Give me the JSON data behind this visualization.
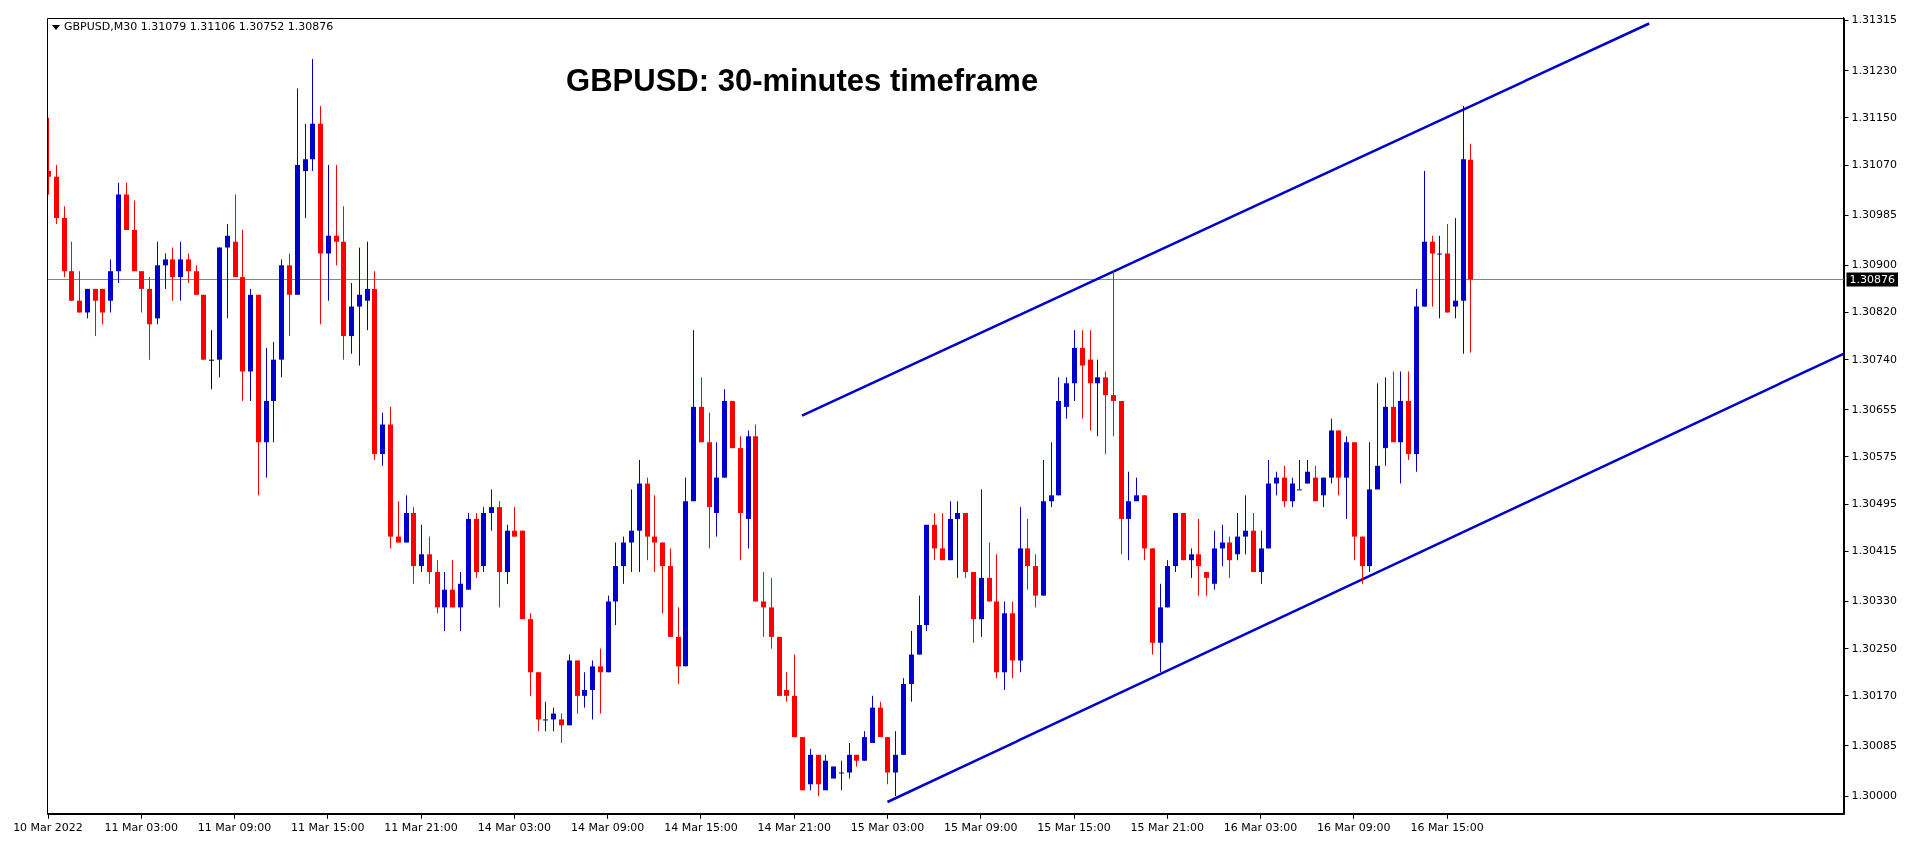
{
  "chart_data": {
    "type": "candlestick",
    "title": "GBPUSD: 30-minutes timeframe",
    "subtitle": "GBPUSD,M30 1.31079 1.31106 1.30752 1.30876",
    "categories": [
      "10 Mar 2022",
      null,
      null,
      null,
      null,
      null,
      null,
      null,
      null,
      null,
      null,
      null,
      "11 Mar 03:00",
      null,
      null,
      null,
      null,
      null,
      null,
      null,
      null,
      null,
      null,
      null,
      "11 Mar 09:00",
      null,
      null,
      null,
      null,
      null,
      null,
      null,
      null,
      null,
      null,
      null,
      "11 Mar 15:00",
      null,
      null,
      null,
      null,
      null,
      null,
      null,
      null,
      null,
      null,
      null,
      "11 Mar 21:00",
      null,
      null,
      null,
      null,
      null,
      null,
      null,
      null,
      null,
      null,
      null,
      "14 Mar 03:00",
      null,
      null,
      null,
      null,
      null,
      null,
      null,
      null,
      null,
      null,
      null,
      "14 Mar 09:00",
      null,
      null,
      null,
      null,
      null,
      null,
      null,
      null,
      null,
      null,
      null,
      "14 Mar 15:00",
      null,
      null,
      null,
      null,
      null,
      null,
      null,
      null,
      null,
      null,
      null,
      "14 Mar 21:00",
      null,
      null,
      null,
      null,
      null,
      null,
      null,
      null,
      null,
      null,
      null,
      "15 Mar 03:00",
      null,
      null,
      null,
      null,
      null,
      null,
      null,
      null,
      null,
      null,
      null,
      "15 Mar 09:00",
      null,
      null,
      null,
      null,
      null,
      null,
      null,
      null,
      null,
      null,
      null,
      "15 Mar 15:00",
      null,
      null,
      null,
      null,
      null,
      null,
      null,
      null,
      null,
      null,
      null,
      "15 Mar 21:00",
      null,
      null,
      null,
      null,
      null,
      null,
      null,
      null,
      null,
      null,
      null,
      "16 Mar 03:00",
      null,
      null,
      null,
      null,
      null,
      null,
      null,
      null,
      null,
      null,
      null,
      "16 Mar 09:00",
      null,
      null,
      null,
      null,
      null,
      null,
      null,
      null,
      null,
      null,
      null,
      "16 Mar 15:00",
      null,
      null,
      null,
      null,
      null,
      null,
      null,
      null,
      null,
      null,
      null,
      null,
      null,
      null,
      null,
      null,
      null,
      null,
      null,
      null,
      null,
      null,
      null,
      null,
      null,
      null,
      null,
      null,
      null,
      null,
      null,
      null,
      null,
      null,
      null,
      null,
      null,
      null,
      null,
      null,
      null,
      null,
      null,
      null,
      null,
      null,
      null,
      null,
      null,
      null,
      null
    ],
    "ohlc": [
      [
        1.3106,
        1.3115,
        1.3102,
        1.3105
      ],
      [
        1.3105,
        1.3107,
        1.3097,
        1.3098
      ],
      [
        1.3098,
        1.31,
        1.3088,
        1.3089
      ],
      [
        1.3089,
        1.3094,
        1.3084,
        1.3084
      ],
      [
        1.3084,
        1.3089,
        1.3082,
        1.3082
      ],
      [
        1.3082,
        1.3086,
        1.3081,
        1.3086
      ],
      [
        1.3086,
        1.3086,
        1.3078,
        1.3084
      ],
      [
        1.3086,
        1.3086,
        1.308,
        1.3082
      ],
      [
        1.3084,
        1.3091,
        1.3082,
        1.3089
      ],
      [
        1.3089,
        1.3104,
        1.3087,
        1.3102
      ],
      [
        1.3102,
        1.3104,
        1.3096,
        1.3096
      ],
      [
        1.3096,
        1.3101,
        1.3089,
        1.3089
      ],
      [
        1.3089,
        1.3089,
        1.3082,
        1.3086
      ],
      [
        1.3086,
        1.3088,
        1.3074,
        1.308
      ],
      [
        1.3081,
        1.3094,
        1.308,
        1.309
      ],
      [
        1.309,
        1.3092,
        1.3086,
        1.3091
      ],
      [
        1.3091,
        1.3093,
        1.3084,
        1.3088
      ],
      [
        1.3088,
        1.3094,
        1.3084,
        1.3091
      ],
      [
        1.3091,
        1.3092,
        1.3087,
        1.3089
      ],
      [
        1.3089,
        1.309,
        1.3085,
        1.3085
      ],
      [
        1.3085,
        1.3085,
        1.3074,
        1.3074
      ],
      [
        1.3074,
        1.3079,
        1.3069,
        1.3074
      ],
      [
        1.3074,
        1.3093,
        1.3071,
        1.3093
      ],
      [
        1.3093,
        1.3097,
        1.3081,
        1.3095
      ],
      [
        1.3094,
        1.3102,
        1.3088,
        1.3088
      ],
      [
        1.3088,
        1.3096,
        1.3067,
        1.3072
      ],
      [
        1.3072,
        1.3086,
        1.3067,
        1.3085
      ],
      [
        1.3085,
        1.3085,
        1.3051,
        1.306
      ],
      [
        1.306,
        1.3076,
        1.3054,
        1.3067
      ],
      [
        1.3067,
        1.3077,
        1.306,
        1.3074
      ],
      [
        1.3074,
        1.3091,
        1.3071,
        1.309
      ],
      [
        1.309,
        1.3092,
        1.3078,
        1.3085
      ],
      [
        1.3085,
        1.312,
        1.3085,
        1.3107
      ],
      [
        1.3106,
        1.3114,
        1.3098,
        1.3108
      ],
      [
        1.3108,
        1.3125,
        1.3106,
        1.3114
      ],
      [
        1.3114,
        1.3117,
        1.308,
        1.3092
      ],
      [
        1.3092,
        1.3107,
        1.3084,
        1.3095
      ],
      [
        1.3095,
        1.3107,
        1.309,
        1.3094
      ],
      [
        1.3094,
        1.31,
        1.3074,
        1.3078
      ],
      [
        1.3078,
        1.3087,
        1.3075,
        1.3083
      ],
      [
        1.3083,
        1.3093,
        1.3073,
        1.3085
      ],
      [
        1.3084,
        1.3094,
        1.3079,
        1.3086
      ],
      [
        1.3086,
        1.3089,
        1.3057,
        1.3058
      ],
      [
        1.3058,
        1.3065,
        1.3056,
        1.3063
      ],
      [
        1.3063,
        1.3066,
        1.3042,
        1.3044
      ],
      [
        1.3044,
        1.305,
        1.3043,
        1.3043
      ],
      [
        1.3043,
        1.3051,
        1.3043,
        1.3048
      ],
      [
        1.3048,
        1.3049,
        1.3036,
        1.3039
      ],
      [
        1.3039,
        1.3046,
        1.3038,
        1.3041
      ],
      [
        1.3041,
        1.3044,
        1.3036,
        1.3038
      ],
      [
        1.3038,
        1.304,
        1.3031,
        1.3032
      ],
      [
        1.3032,
        1.3038,
        1.3028,
        1.3035
      ],
      [
        1.3035,
        1.304,
        1.3032,
        1.3032
      ],
      [
        1.3032,
        1.3038,
        1.3028,
        1.3036
      ],
      [
        1.3035,
        1.3048,
        1.3035,
        1.3047
      ],
      [
        1.3047,
        1.3048,
        1.3037,
        1.3038
      ],
      [
        1.3039,
        1.3049,
        1.3038,
        1.3048
      ],
      [
        1.3048,
        1.3052,
        1.3045,
        1.3049
      ],
      [
        1.3049,
        1.305,
        1.3032,
        1.3038
      ],
      [
        1.3038,
        1.3046,
        1.3036,
        1.3045
      ],
      [
        1.3045,
        1.3049,
        1.3044,
        1.3044
      ],
      [
        1.3045,
        1.3045,
        1.303,
        1.303
      ],
      [
        1.303,
        1.3031,
        1.3017,
        1.3021
      ],
      [
        1.3021,
        1.3021,
        1.3011,
        1.3013
      ],
      [
        1.3013,
        1.3016,
        1.3011,
        1.3013
      ],
      [
        1.3013,
        1.3015,
        1.3011,
        1.3014
      ],
      [
        1.3013,
        1.3014,
        1.3009,
        1.3012
      ],
      [
        1.3012,
        1.3024,
        1.3012,
        1.3023
      ],
      [
        1.3023,
        1.3023,
        1.3014,
        1.3017
      ],
      [
        1.3017,
        1.3021,
        1.3015,
        1.3018
      ],
      [
        1.3018,
        1.3023,
        1.3013,
        1.3022
      ],
      [
        1.3022,
        1.3025,
        1.3014,
        1.3021
      ],
      [
        1.3021,
        1.3034,
        1.3021,
        1.3033
      ],
      [
        1.3033,
        1.3043,
        1.3029,
        1.3039
      ],
      [
        1.3039,
        1.3044,
        1.3036,
        1.3043
      ],
      [
        1.3043,
        1.3052,
        1.3038,
        1.3045
      ],
      [
        1.3045,
        1.3057,
        1.3038,
        1.3053
      ],
      [
        1.3053,
        1.3054,
        1.304,
        1.3044
      ],
      [
        1.3044,
        1.3051,
        1.3038,
        1.3043
      ],
      [
        1.3043,
        1.3043,
        1.3031,
        1.3039
      ],
      [
        1.3039,
        1.3042,
        1.3027,
        1.3027
      ],
      [
        1.3027,
        1.3032,
        1.3019,
        1.3022
      ],
      [
        1.3022,
        1.3054,
        1.3022,
        1.305
      ],
      [
        1.305,
        1.3079,
        1.305,
        1.3066
      ],
      [
        1.3066,
        1.3071,
        1.306,
        1.306
      ],
      [
        1.306,
        1.3065,
        1.3042,
        1.3049
      ],
      [
        1.3048,
        1.306,
        1.3044,
        1.3054
      ],
      [
        1.3054,
        1.3069,
        1.3054,
        1.3067
      ],
      [
        1.3067,
        1.3067,
        1.3059,
        1.3059
      ],
      [
        1.3059,
        1.3061,
        1.304,
        1.3048
      ],
      [
        1.3047,
        1.3062,
        1.3042,
        1.3061
      ],
      [
        1.3061,
        1.3063,
        1.3033,
        1.3033
      ],
      [
        1.3033,
        1.3038,
        1.3027,
        1.3032
      ],
      [
        1.3032,
        1.3037,
        1.3025,
        1.3027
      ],
      [
        1.3027,
        1.3027,
        1.3017,
        1.3017
      ],
      [
        1.3018,
        1.3021,
        1.3016,
        1.3017
      ],
      [
        1.3017,
        1.3024,
        1.301,
        1.301
      ],
      [
        1.301,
        1.301,
        1.3001,
        1.3001
      ],
      [
        1.3002,
        1.3008,
        1.3001,
        1.3007
      ],
      [
        1.3007,
        1.3007,
        1.3,
        1.3002
      ],
      [
        1.3001,
        1.3007,
        1.3001,
        1.3006
      ],
      [
        1.3003,
        1.3005,
        1.3003,
        1.3005
      ],
      [
        1.3004,
        1.3006,
        1.3001,
        1.3004
      ],
      [
        1.3004,
        1.3009,
        1.3003,
        1.3007
      ],
      [
        1.3007,
        1.3007,
        1.3005,
        1.3006
      ],
      [
        1.3006,
        1.3011,
        1.3006,
        1.301
      ],
      [
        1.3009,
        1.3017,
        1.3009,
        1.3015
      ],
      [
        1.3015,
        1.3016,
        1.301,
        1.301
      ],
      [
        1.301,
        1.301,
        1.3002,
        1.3004
      ],
      [
        1.3004,
        1.3011,
        1.3,
        1.3007
      ],
      [
        1.3007,
        1.302,
        1.3007,
        1.3019
      ],
      [
        1.3019,
        1.3028,
        1.3016,
        1.3024
      ],
      [
        1.3024,
        1.3034,
        1.3024,
        1.3029
      ],
      [
        1.3029,
        1.3046,
        1.3028,
        1.3046
      ],
      [
        1.3046,
        1.3048,
        1.304,
        1.3042
      ],
      [
        1.3042,
        1.3048,
        1.304,
        1.304
      ],
      [
        1.304,
        1.305,
        1.304,
        1.3047
      ],
      [
        1.3047,
        1.305,
        1.3037,
        1.3048
      ],
      [
        1.3048,
        1.3048,
        1.3037,
        1.3038
      ],
      [
        1.3038,
        1.3038,
        1.3026,
        1.303
      ],
      [
        1.303,
        1.3052,
        1.3027,
        1.3037
      ],
      [
        1.3037,
        1.3043,
        1.3033,
        1.3033
      ],
      [
        1.3033,
        1.3041,
        1.302,
        1.3021
      ],
      [
        1.3021,
        1.3033,
        1.3018,
        1.3031
      ],
      [
        1.3031,
        1.3033,
        1.302,
        1.3023
      ],
      [
        1.3023,
        1.3049,
        1.3021,
        1.3042
      ],
      [
        1.3042,
        1.3047,
        1.3035,
        1.3039
      ],
      [
        1.3039,
        1.3041,
        1.3032,
        1.3034
      ],
      [
        1.3034,
        1.3057,
        1.3034,
        1.305
      ],
      [
        1.305,
        1.306,
        1.3049,
        1.3051
      ],
      [
        1.3051,
        1.3071,
        1.3051,
        1.3067
      ],
      [
        1.3066,
        1.3071,
        1.3064,
        1.307
      ],
      [
        1.307,
        1.3079,
        1.3067,
        1.3076
      ],
      [
        1.3076,
        1.3079,
        1.3064,
        1.3073
      ],
      [
        1.3074,
        1.3079,
        1.3062,
        1.307
      ],
      [
        1.307,
        1.3074,
        1.3061,
        1.3071
      ],
      [
        1.3071,
        1.3072,
        1.3058,
        1.3068
      ],
      [
        1.3068,
        1.3089,
        1.3061,
        1.3067
      ],
      [
        1.3067,
        1.3067,
        1.3041,
        1.3047
      ],
      [
        1.3047,
        1.3055,
        1.304,
        1.305
      ],
      [
        1.305,
        1.3054,
        1.305,
        1.3051
      ],
      [
        1.3051,
        1.3051,
        1.304,
        1.3042
      ],
      [
        1.3042,
        1.3042,
        1.3024,
        1.3026
      ],
      [
        1.3026,
        1.3036,
        1.3021,
        1.3032
      ],
      [
        1.3032,
        1.304,
        1.3032,
        1.3039
      ],
      [
        1.3039,
        1.3048,
        1.3038,
        1.3048
      ],
      [
        1.3048,
        1.3048,
        1.304,
        1.304
      ],
      [
        1.304,
        1.3042,
        1.3037,
        1.3041
      ],
      [
        1.3041,
        1.3047,
        1.3034,
        1.3039
      ],
      [
        1.3038,
        1.3038,
        1.3034,
        1.3037
      ],
      [
        1.3036,
        1.3045,
        1.3035,
        1.3042
      ],
      [
        1.3042,
        1.3046,
        1.3039,
        1.3043
      ],
      [
        1.3043,
        1.3044,
        1.3037,
        1.304
      ],
      [
        1.3041,
        1.3048,
        1.304,
        1.3044
      ],
      [
        1.3044,
        1.3051,
        1.3041,
        1.3045
      ],
      [
        1.3045,
        1.3048,
        1.3038,
        1.3038
      ],
      [
        1.3038,
        1.3045,
        1.3036,
        1.3042
      ],
      [
        1.3042,
        1.3057,
        1.3042,
        1.3053
      ],
      [
        1.3053,
        1.3055,
        1.3051,
        1.3054
      ],
      [
        1.3054,
        1.3056,
        1.3049,
        1.305
      ],
      [
        1.305,
        1.3054,
        1.3049,
        1.3053
      ],
      [
        1.3052,
        1.3057,
        1.3052,
        1.3052
      ],
      [
        1.3053,
        1.3057,
        1.3053,
        1.3055
      ],
      [
        1.3054,
        1.3056,
        1.305,
        1.305
      ],
      [
        1.3051,
        1.3054,
        1.3049,
        1.3054
      ],
      [
        1.3054,
        1.3064,
        1.3053,
        1.3062
      ],
      [
        1.3062,
        1.3062,
        1.3051,
        1.3054
      ],
      [
        1.3054,
        1.3061,
        1.3047,
        1.306
      ],
      [
        1.306,
        1.306,
        1.304,
        1.3044
      ],
      [
        1.3044,
        1.3044,
        1.3036,
        1.3039
      ],
      [
        1.3039,
        1.306,
        1.3038,
        1.3052
      ],
      [
        1.3052,
        1.307,
        1.3052,
        1.3056
      ],
      [
        1.3059,
        1.3071,
        1.3056,
        1.3066
      ],
      [
        1.3066,
        1.3072,
        1.306,
        1.306
      ],
      [
        1.306,
        1.3072,
        1.3053,
        1.3067
      ],
      [
        1.3067,
        1.3072,
        1.3057,
        1.3058
      ],
      [
        1.3058,
        1.3086,
        1.3055,
        1.3083
      ],
      [
        1.3083,
        1.3106,
        1.3083,
        1.3094
      ],
      [
        1.3094,
        1.3095,
        1.3083,
        1.3092
      ],
      [
        1.3092,
        1.3095,
        1.3081,
        1.3092
      ],
      [
        1.3092,
        1.3097,
        1.3082,
        1.3082
      ],
      [
        1.3083,
        1.3098,
        1.3081,
        1.3084
      ],
      [
        1.3084,
        1.3117,
        1.3075,
        1.3108
      ],
      [
        1.31079,
        1.31106,
        1.30752,
        1.30876
      ],
      null,
      null,
      null,
      null,
      null,
      null,
      null,
      null,
      null,
      null,
      null,
      null,
      null,
      null,
      null,
      null,
      null,
      null,
      null,
      null,
      null,
      null,
      null,
      null,
      null,
      null,
      null,
      null,
      null,
      null,
      null,
      null,
      null,
      null,
      null,
      null,
      null,
      null,
      null,
      null,
      null,
      null,
      null,
      null,
      null,
      null,
      null,
      null
    ],
    "colors": [
      "#ff0000",
      "#ff0000",
      "#ff0000",
      "#ff0000",
      "#ff0000",
      "#0000cc",
      "#ff0000",
      "#ff0000",
      "#0000cc",
      "#0000cc",
      "#ff0000",
      "#ff0000",
      "#ff0000",
      "#ff0000",
      "#0000cc",
      "#0000cc",
      "#ff0000",
      "#0000cc",
      "#ff0000",
      "#ff0000",
      "#ff0000",
      "#000000",
      "#0000cc",
      "#0000cc",
      "#ff0000",
      "#ff0000",
      "#0000cc",
      "#ff0000",
      "#0000cc",
      "#0000cc",
      "#0000cc",
      "#ff0000",
      "#0000cc",
      "#0000cc",
      "#0000cc",
      "#ff0000",
      "#0000cc",
      "#ff0000",
      "#ff0000",
      "#0000cc",
      "#0000cc",
      "#0000cc",
      "#ff0000",
      "#0000cc",
      "#ff0000",
      "#ff0000",
      "#0000cc",
      "#ff0000",
      "#0000cc",
      "#ff0000",
      "#ff0000",
      "#0000cc",
      "#ff0000",
      "#0000cc",
      "#0000cc",
      "#ff0000",
      "#0000cc",
      "#0000cc",
      "#ff0000",
      "#0000cc",
      "#ff0000",
      "#ff0000",
      "#ff0000",
      "#ff0000",
      "#0000cc",
      "#0000cc",
      "#ff0000",
      "#0000cc",
      "#ff0000",
      "#0000cc",
      "#0000cc",
      "#ff0000",
      "#0000cc",
      "#0000cc",
      "#0000cc",
      "#0000cc",
      "#0000cc",
      "#ff0000",
      "#ff0000",
      "#ff0000",
      "#ff0000",
      "#ff0000",
      "#0000cc",
      "#0000cc",
      "#ff0000",
      "#ff0000",
      "#0000cc",
      "#0000cc",
      "#ff0000",
      "#ff0000",
      "#0000cc",
      "#ff0000",
      "#ff0000",
      "#ff0000",
      "#ff0000",
      "#ff0000",
      "#ff0000",
      "#ff0000",
      "#0000cc",
      "#ff0000",
      "#0000cc",
      "#0000cc",
      "#0000cc",
      "#0000cc",
      "#ff0000",
      "#0000cc",
      "#0000cc",
      "#ff0000",
      "#ff0000",
      "#0000cc",
      "#0000cc",
      "#0000cc",
      "#0000cc",
      "#0000cc",
      "#ff0000",
      "#ff0000",
      "#0000cc",
      "#0000cc",
      "#ff0000",
      "#ff0000",
      "#0000cc",
      "#ff0000",
      "#ff0000",
      "#0000cc",
      "#ff0000",
      "#0000cc",
      "#ff0000",
      "#ff0000",
      "#0000cc",
      "#0000cc",
      "#0000cc",
      "#0000cc",
      "#0000cc",
      "#ff0000",
      "#ff0000",
      "#0000cc",
      "#ff0000",
      "#ff0000",
      "#ff0000",
      "#0000cc",
      "#0000cc",
      "#ff0000",
      "#ff0000",
      "#0000cc",
      "#0000cc",
      "#0000cc",
      "#ff0000",
      "#0000cc",
      "#ff0000",
      "#ff0000",
      "#0000cc",
      "#0000cc",
      "#ff0000",
      "#0000cc",
      "#0000cc",
      "#ff0000",
      "#0000cc",
      "#0000cc",
      "#0000cc",
      "#ff0000",
      "#0000cc",
      "#0000cc",
      "#0000cc",
      "#ff0000",
      "#0000cc",
      "#0000cc",
      "#ff0000",
      "#0000cc",
      "#ff0000",
      "#ff0000",
      "#0000cc",
      "#0000cc",
      "#0000cc",
      "#ff0000",
      "#0000cc",
      "#ff0000",
      "#0000cc",
      "#0000cc",
      "#ff0000",
      "#0000cc",
      "#ff0000",
      "#0000cc",
      "#0000cc",
      "#ff0000",
      null,
      null,
      null,
      null,
      null,
      null,
      null,
      null,
      null,
      null,
      null,
      null,
      null,
      null,
      null,
      null,
      null,
      null,
      null,
      null,
      null,
      null,
      null,
      null,
      null,
      null,
      null,
      null,
      null,
      null,
      null,
      null,
      null,
      null,
      null,
      null,
      null,
      null,
      null,
      null,
      null,
      null,
      null,
      null,
      null,
      null,
      null,
      null
    ],
    "series": [
      {
        "type": "line",
        "color": "#0000cc",
        "values": [
          null,
          null,
          null,
          null,
          null,
          null,
          null,
          null,
          null,
          null,
          null,
          null,
          null,
          null,
          null,
          null,
          null,
          null,
          null,
          null,
          null,
          null,
          null,
          null,
          null,
          null,
          null,
          null,
          null,
          null,
          null,
          null,
          null,
          null,
          null,
          null,
          null,
          null,
          null,
          null,
          null,
          null,
          null,
          null,
          null,
          null,
          null,
          null,
          null,
          null,
          null,
          null,
          null,
          null,
          null,
          null,
          null,
          null,
          null,
          null,
          null,
          null,
          null,
          null,
          null,
          null,
          null,
          null,
          null,
          null,
          null,
          null,
          null,
          null,
          null,
          null,
          null,
          null,
          null,
          null,
          null,
          null,
          null,
          null,
          null,
          null,
          null,
          null,
          null,
          null,
          null,
          null,
          null,
          null,
          null,
          null,
          null,
          1.30645,
          null,
          null,
          null,
          null,
          null,
          null,
          null,
          null,
          null,
          null,
          null,
          null,
          null,
          null,
          null,
          null,
          null,
          null,
          null,
          null,
          null,
          null,
          null,
          null,
          null,
          null,
          null,
          null,
          null,
          null,
          null,
          null,
          null,
          null,
          null,
          null,
          null,
          null,
          null,
          null,
          null,
          null,
          null,
          null,
          null,
          null,
          null,
          null,
          null,
          null,
          null,
          null,
          null,
          null,
          null,
          null,
          null,
          null,
          null,
          null,
          null,
          null,
          null,
          null,
          null,
          null,
          null,
          null,
          null,
          null,
          null,
          null,
          null,
          null,
          null,
          null,
          null,
          null,
          null,
          null,
          null,
          null,
          null,
          null,
          null,
          null,
          null,
          null,
          null,
          null,
          null,
          null,
          null,
          null,
          null,
          null,
          null,
          null,
          null,
          null,
          null,
          null,
          null,
          null,
          null,
          null,
          null,
          null,
          1.3131,
          null,
          null,
          null,
          null,
          null,
          null,
          null,
          null,
          null,
          null,
          null,
          null,
          null,
          null,
          null,
          null,
          null,
          null,
          null,
          null,
          null,
          null,
          null,
          null,
          null
        ]
      },
      {
        "type": "line",
        "color": "#0000cc",
        "values": [
          null,
          null,
          null,
          null,
          null,
          null,
          null,
          null,
          null,
          null,
          null,
          null,
          null,
          null,
          null,
          null,
          null,
          null,
          null,
          null,
          null,
          null,
          null,
          null,
          null,
          null,
          null,
          null,
          null,
          null,
          null,
          null,
          null,
          null,
          null,
          null,
          null,
          null,
          null,
          null,
          null,
          null,
          null,
          null,
          null,
          null,
          null,
          null,
          null,
          null,
          null,
          null,
          null,
          null,
          null,
          null,
          null,
          null,
          null,
          null,
          null,
          null,
          null,
          null,
          null,
          null,
          null,
          null,
          null,
          null,
          null,
          null,
          null,
          null,
          null,
          null,
          null,
          null,
          null,
          null,
          null,
          null,
          null,
          null,
          null,
          null,
          null,
          null,
          null,
          null,
          null,
          null,
          null,
          null,
          null,
          null,
          null,
          null,
          null,
          null,
          null,
          null,
          null,
          null,
          null,
          null,
          null,
          null,
          1.2999,
          null,
          null,
          null,
          null,
          null,
          null,
          null,
          null,
          null,
          null,
          null,
          null,
          null,
          null,
          null,
          null,
          null,
          null,
          null,
          null,
          null,
          null,
          null,
          null,
          null,
          null,
          null,
          null,
          null,
          null,
          null,
          null,
          null,
          null,
          null,
          null,
          null,
          null,
          null,
          null,
          null,
          null,
          null,
          null,
          null,
          null,
          null,
          null,
          null,
          null,
          null,
          null,
          null,
          null,
          null,
          null,
          null,
          null,
          null,
          null,
          null,
          null,
          null,
          null,
          null,
          null,
          null,
          null,
          null,
          null,
          null,
          null,
          null,
          null,
          null,
          null,
          null,
          null,
          null,
          null,
          null,
          null,
          null,
          null,
          null,
          null,
          null,
          null,
          null,
          null,
          null,
          null,
          null,
          null,
          null,
          null,
          null,
          null,
          null,
          null,
          null,
          null,
          null,
          null,
          null,
          null,
          null,
          null,
          null,
          null,
          null,
          null,
          null,
          null,
          null,
          null,
          null,
          null,
          null,
          null,
          null,
          null,
          1.3075
        ]
      }
    ],
    "ylim": [
      1.2997,
      1.3132
    ],
    "yticks": [
      1.31315,
      {
        "value": 1.3123,
        "label": "1.31230"
      },
      {
        "value": 1.3115,
        "label": "1.31150"
      },
      {
        "value": 1.3107,
        "label": "1.31070"
      },
      1.30985,
      {
        "value": 1.309,
        "label": "1.30900"
      },
      {
        "value": 1.3082,
        "label": "1.30820"
      },
      {
        "value": 1.3074,
        "label": "1.30740"
      },
      1.30655,
      1.30575,
      1.30495,
      1.30415,
      {
        "value": 1.3033,
        "label": "1.30330"
      },
      {
        "value": 1.3025,
        "label": "1.30250"
      },
      {
        "value": 1.3017,
        "label": "1.30170"
      },
      1.30085,
      {
        "value": 1.3,
        "label": "1.30000"
      }
    ],
    "ref_lines": [
      {
        "axis": "y",
        "value": 1.30876,
        "label": "1.30876",
        "color": "#778899"
      }
    ]
  }
}
